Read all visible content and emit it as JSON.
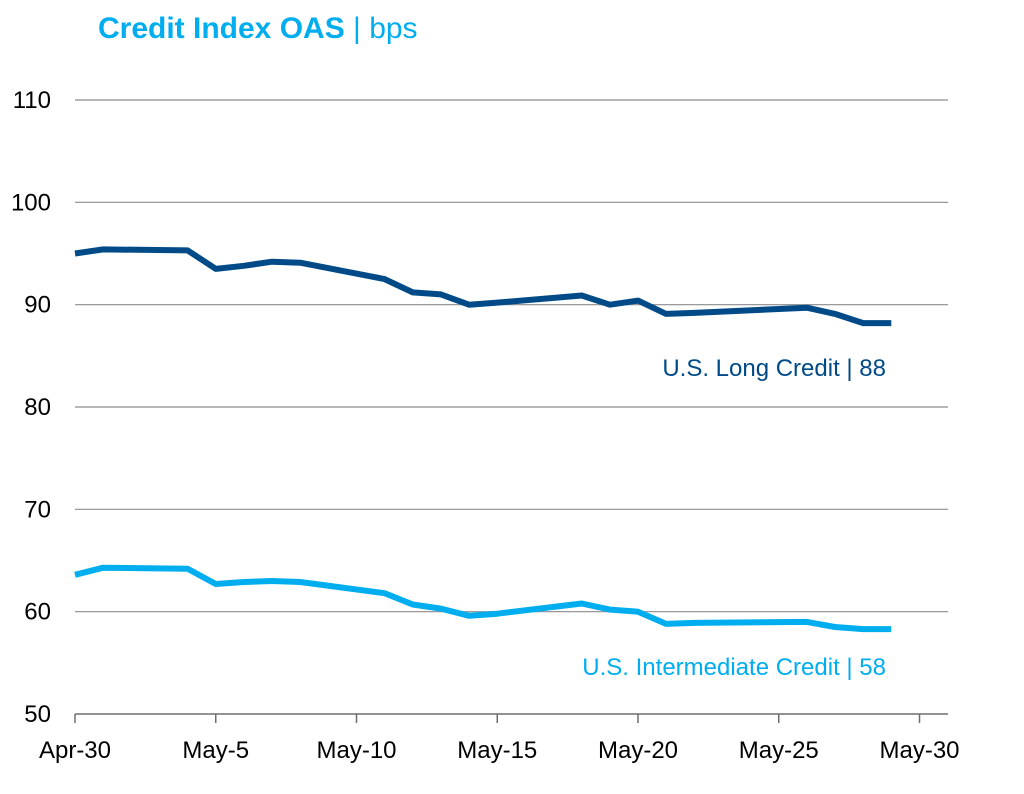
{
  "colors": {
    "title": "#00aeef",
    "long": "#004b87",
    "intermediate": "#00aeef",
    "grid": "#8c8c8c",
    "axis": "#6e6e6e"
  },
  "chart_data": {
    "type": "line",
    "title": "Credit Index OAS",
    "title_unit": "bps",
    "x_tick_labels": [
      "Apr-30",
      "May-5",
      "May-10",
      "May-15",
      "May-20",
      "May-25",
      "May-30"
    ],
    "y_ticks": [
      50,
      60,
      70,
      80,
      90,
      100,
      110
    ],
    "ylim": [
      50,
      110
    ],
    "grid": true,
    "x": [
      "Apr-30",
      "May-1",
      "May-4",
      "May-5",
      "May-6",
      "May-7",
      "May-8",
      "May-11",
      "May-12",
      "May-13",
      "May-14",
      "May-15",
      "May-18",
      "May-19",
      "May-20",
      "May-21",
      "May-22",
      "May-26",
      "May-27",
      "May-28",
      "May-29"
    ],
    "series": [
      {
        "key": "long",
        "name": "U.S. Long Credit | 88",
        "values": [
          95.0,
          95.4,
          95.3,
          93.5,
          93.8,
          94.2,
          94.1,
          92.5,
          91.2,
          91.0,
          90.0,
          90.2,
          90.9,
          90.0,
          90.4,
          89.1,
          89.2,
          89.7,
          89.1,
          88.2,
          88.2
        ]
      },
      {
        "key": "intermediate",
        "name": "U.S. Intermediate Credit | 58",
        "values": [
          63.6,
          64.3,
          64.2,
          62.7,
          62.9,
          63.0,
          62.9,
          61.8,
          60.7,
          60.3,
          59.6,
          59.8,
          60.8,
          60.2,
          60.0,
          58.8,
          58.9,
          59.0,
          58.5,
          58.3,
          58.3
        ]
      }
    ]
  }
}
